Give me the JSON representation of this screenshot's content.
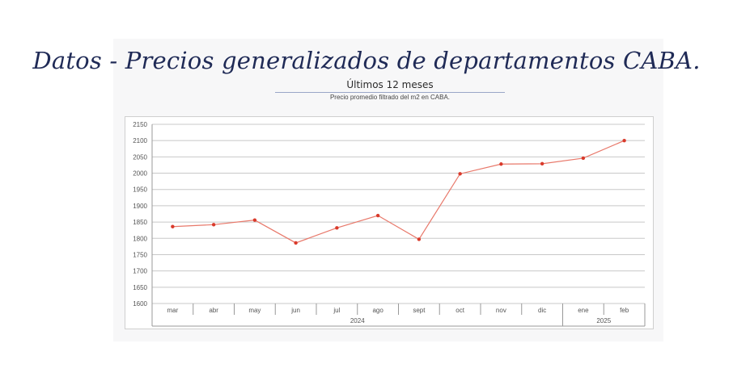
{
  "header": {
    "title": "Datos - Precios generalizados de departamentos CABA.",
    "subtitle": "Últimos 12 meses",
    "caption": "Precio promedio filtrado del m2 en CABA."
  },
  "colors": {
    "line": "#e8786a",
    "marker": "#d93a2b",
    "grid": "#c8c8c8",
    "title": "#1f2a56"
  },
  "chart_data": {
    "type": "line",
    "title": "",
    "xlabel": "",
    "ylabel": "",
    "categories": [
      "mar",
      "abr",
      "may",
      "jun",
      "jul",
      "ago",
      "sept",
      "oct",
      "nov",
      "dic",
      "ene",
      "feb"
    ],
    "year_groups": [
      {
        "label": "2024",
        "start": 0,
        "end": 9
      },
      {
        "label": "2025",
        "start": 10,
        "end": 11
      }
    ],
    "series": [
      {
        "values": [
          1836,
          1842,
          1856,
          1786,
          1832,
          1870,
          1797,
          1998,
          2028,
          2029,
          2046,
          2100
        ]
      }
    ],
    "ylim": [
      1600,
      2150
    ],
    "yticks": [
      1600,
      1650,
      1700,
      1750,
      1800,
      1850,
      1900,
      1950,
      2000,
      2050,
      2100,
      2150
    ],
    "grid": true,
    "legend": "none"
  }
}
